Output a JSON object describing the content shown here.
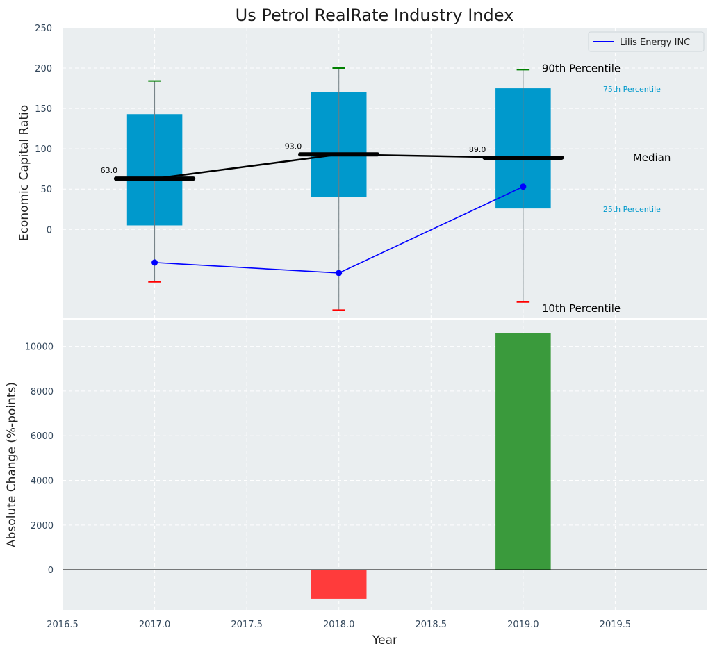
{
  "chart_data": {
    "title": "Us Petrol RealRate Industry Index",
    "colors": {
      "background": "#ffffff",
      "axes_bg": "#eaeef0",
      "box": "#0099cc",
      "median": "#000000",
      "whisker": "#6e7b80",
      "p90_cap": "#008000",
      "p10_cap": "#ff0000",
      "company_line": "#0000ff",
      "bar_positive": "#3a9a3c",
      "bar_negative": "#ff3b3b",
      "percentile_small_label": "#0099cc"
    },
    "top": {
      "type": "box-percentile",
      "ylabel": "Economic Capital Ratio",
      "ylim": [
        -110,
        250
      ],
      "yticks": [
        0,
        50,
        100,
        150,
        200,
        250
      ],
      "xlim": [
        2016.5,
        2020.0
      ],
      "years": [
        2017.0,
        2018.0,
        2019.0
      ],
      "p10": [
        -65,
        -100,
        -90
      ],
      "p25": [
        5,
        40,
        26
      ],
      "median": [
        63,
        93,
        89
      ],
      "p75": [
        143,
        170,
        175
      ],
      "p90": [
        184,
        200,
        198
      ],
      "median_labels": [
        "63.0",
        "93.0",
        "89.0"
      ],
      "company": {
        "name": "Lilis Energy INC",
        "values": [
          -41,
          -54,
          53
        ]
      },
      "legend": "top-right",
      "annotations": {
        "p90": "90th Percentile",
        "p75": "75th Percentile",
        "median": "Median",
        "p25": "25th Percentile",
        "p10": "10th Percentile"
      }
    },
    "bottom": {
      "type": "bar",
      "xlabel": "Year",
      "ylabel": "Absolute Change (%-points)",
      "ylim": [
        -1800,
        11200
      ],
      "yticks": [
        0,
        2000,
        4000,
        6000,
        8000,
        10000
      ],
      "xlim": [
        2016.5,
        2020.0
      ],
      "xticks": [
        "2016.5",
        "2017.0",
        "2017.5",
        "2018.0",
        "2018.5",
        "2019.0",
        "2019.5"
      ],
      "x": [
        2018.0,
        2019.0
      ],
      "values": [
        -1300,
        10600
      ]
    }
  }
}
